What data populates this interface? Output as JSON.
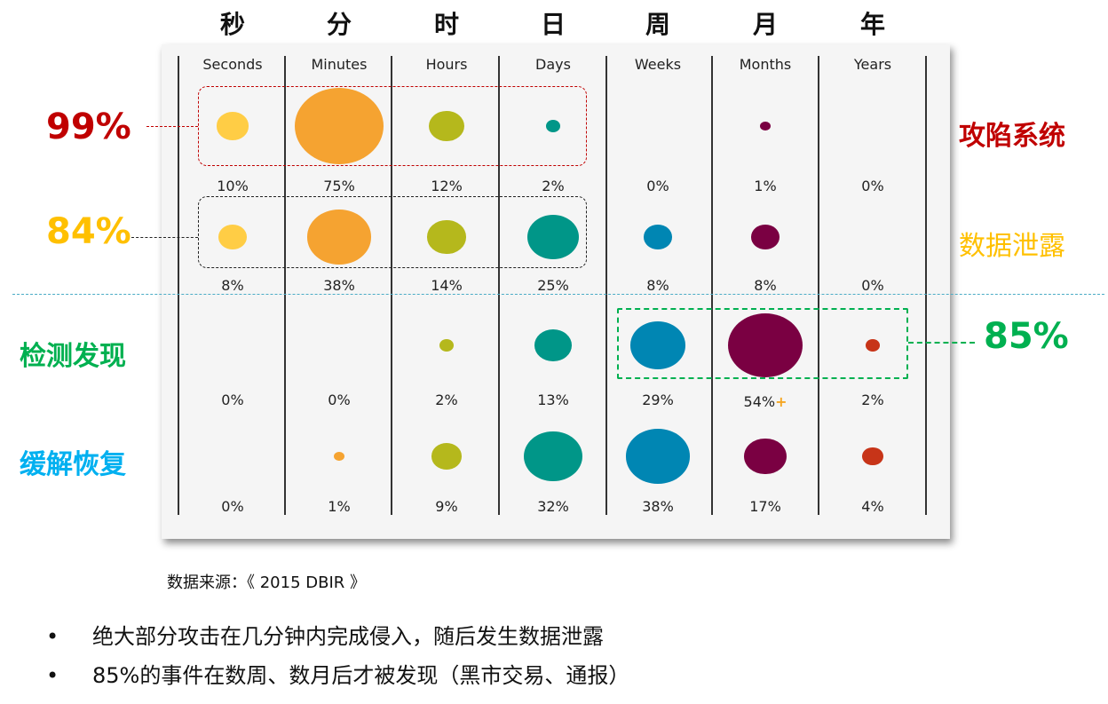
{
  "chart_data": {
    "type": "bubble",
    "time_units_cn": [
      "秒",
      "分",
      "时",
      "日",
      "周",
      "月",
      "年"
    ],
    "categories": [
      "Seconds",
      "Minutes",
      "Hours",
      "Days",
      "Weeks",
      "Months",
      "Years"
    ],
    "colors": [
      "#ffcd45",
      "#f5a331",
      "#b5b81c",
      "#009688",
      "#0086b3",
      "#7a0042",
      "#c73418"
    ],
    "series": [
      {
        "name": "攻陷系统",
        "values": [
          10,
          75,
          12,
          2,
          0,
          1,
          0
        ],
        "labels": [
          "10%",
          "75%",
          "12%",
          "2%",
          "0%",
          "1%",
          "0%"
        ]
      },
      {
        "name": "数据泄露",
        "values": [
          8,
          38,
          14,
          25,
          8,
          8,
          0
        ],
        "labels": [
          "8%",
          "38%",
          "14%",
          "25%",
          "8%",
          "8%",
          "0%"
        ]
      },
      {
        "name": "检测发现",
        "values": [
          0,
          0,
          2,
          13,
          29,
          54,
          2
        ],
        "labels": [
          "0%",
          "0%",
          "2%",
          "13%",
          "29%",
          "54%",
          "2%"
        ]
      },
      {
        "name": "缓解恢复",
        "values": [
          0,
          1,
          9,
          32,
          38,
          17,
          4
        ],
        "labels": [
          "0%",
          "1%",
          "9%",
          "32%",
          "38%",
          "17%",
          "4%"
        ]
      }
    ]
  },
  "annotations": {
    "compromise": {
      "percent": "99%",
      "label": "攻陷系统",
      "color": "#c00000"
    },
    "exfiltration": {
      "percent": "84%",
      "label": "数据泄露",
      "color": "#ffc000"
    },
    "discovery": {
      "percent": "85%",
      "label": "检测发现",
      "color": "#00b050"
    },
    "containment": {
      "label": "缓解恢复",
      "color": "#00b0f0"
    },
    "plus_marker": "+"
  },
  "source": "数据来源：《 2015 DBIR 》",
  "bullets": [
    {
      "dot": "•",
      "text": "绝大部分攻击在几分钟内完成侵入，随后发生数据泄露"
    },
    {
      "dot": "•",
      "text": "85%的事件在数周、数月后才被发现（黑市交易、通报）"
    }
  ]
}
